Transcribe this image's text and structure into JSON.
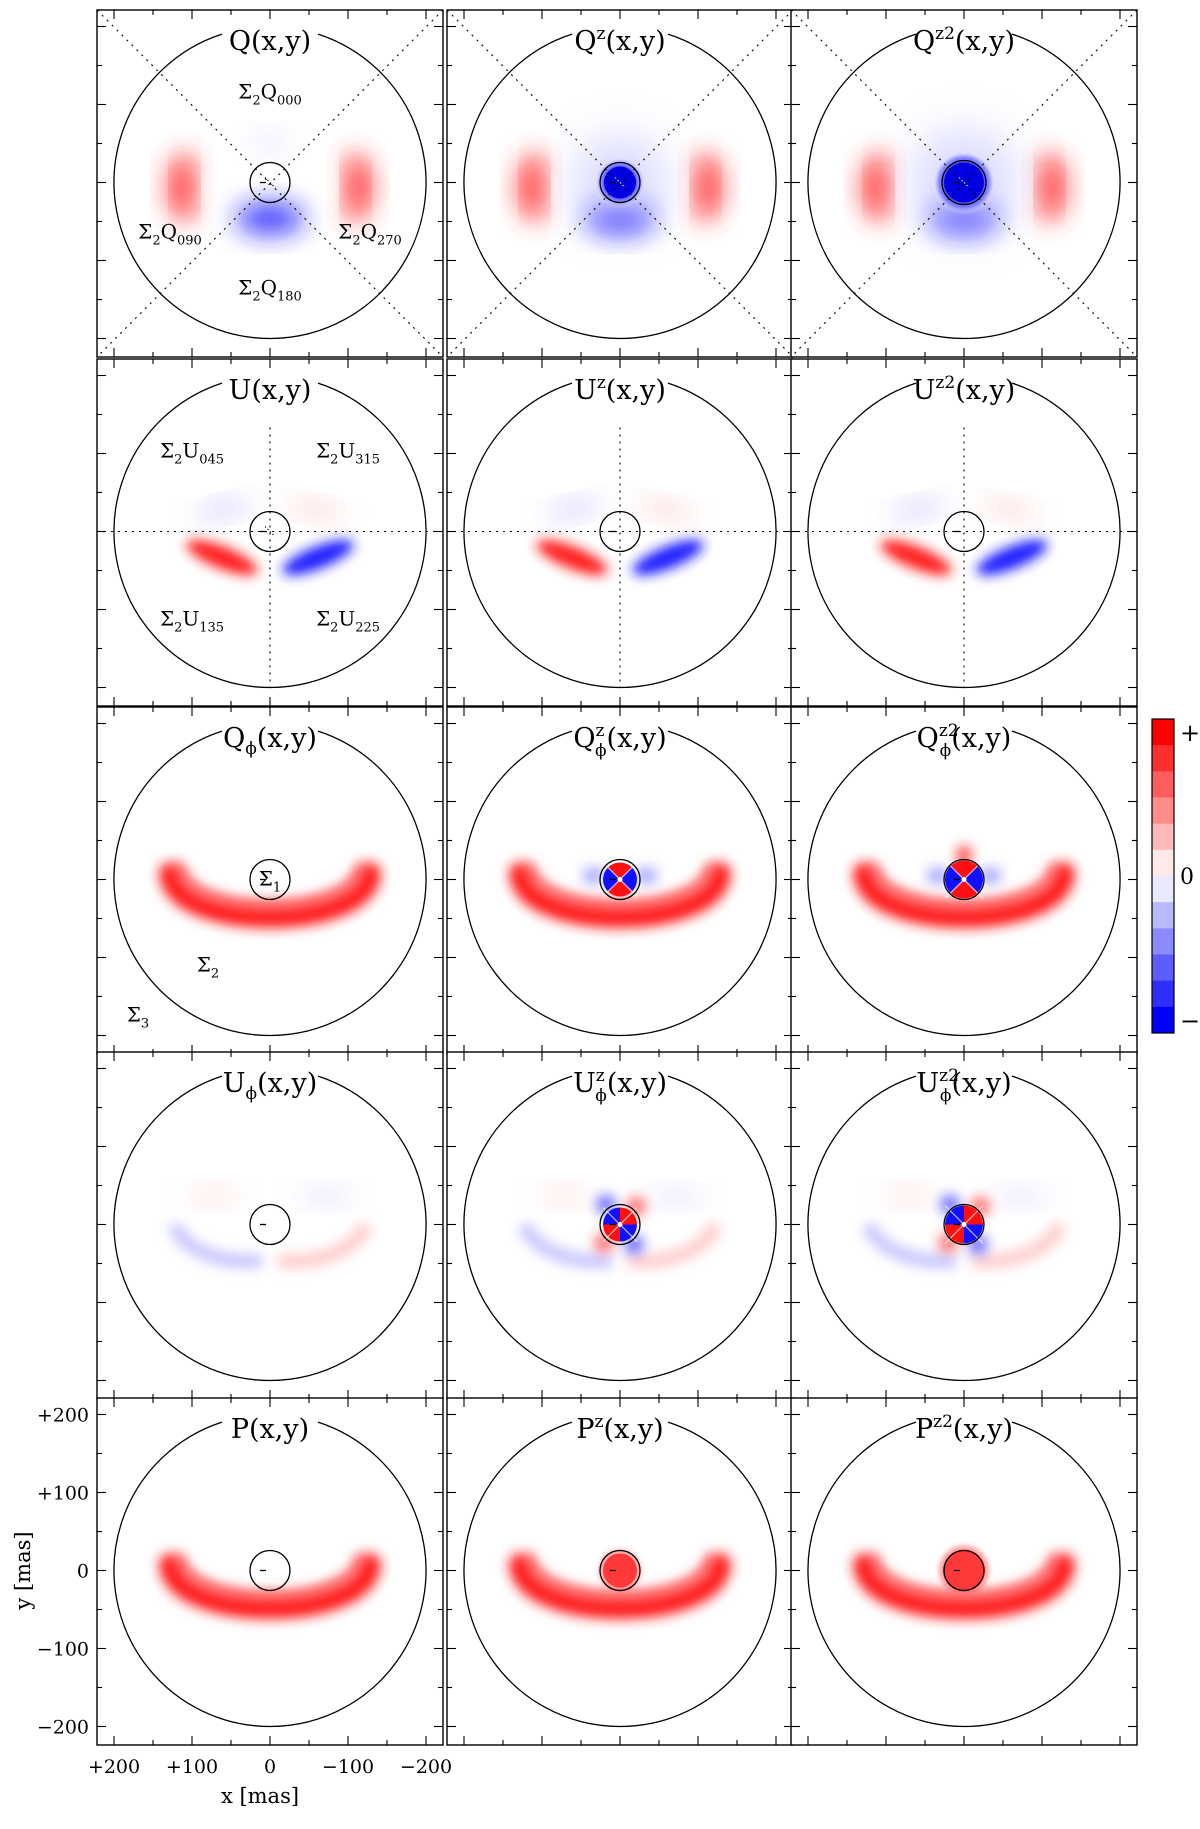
{
  "figure": {
    "axes": {
      "x_label": "x [mas]",
      "y_label": "y [mas]",
      "x_ticks": [
        "+200",
        "+100",
        "0",
        "−100",
        "−200"
      ],
      "y_ticks": [
        "+200",
        "+100",
        "0",
        "−100",
        "−200"
      ]
    },
    "colorbar": {
      "top_label": "+",
      "mid_label": "0",
      "bottom_label": "−",
      "pos_color": "#ff0000",
      "neg_color": "#0000ff"
    },
    "rows": [
      {
        "id": "q",
        "guide": "diag",
        "titles": [
          {
            "base": "Q",
            "sup": "",
            "sub": ""
          },
          {
            "base": "Q",
            "sup": "z",
            "sub": ""
          },
          {
            "base": "Q",
            "sup": "z2",
            "sub": ""
          }
        ],
        "annotations": [
          {
            "key": "n",
            "base": "Σ",
            "s1": "2",
            "mid": "Q",
            "s2": "000"
          },
          {
            "key": "w",
            "base": "Σ",
            "s1": "2",
            "mid": "Q",
            "s2": "090"
          },
          {
            "key": "e",
            "base": "Σ",
            "s1": "2",
            "mid": "Q",
            "s2": "270"
          },
          {
            "key": "s",
            "base": "Σ",
            "s1": "2",
            "mid": "Q",
            "s2": "180"
          }
        ]
      },
      {
        "id": "u",
        "guide": "cross",
        "titles": [
          {
            "base": "U",
            "sup": "",
            "sub": ""
          },
          {
            "base": "U",
            "sup": "z",
            "sub": ""
          },
          {
            "base": "U",
            "sup": "z2",
            "sub": ""
          }
        ],
        "annotations": [
          {
            "key": "nw",
            "base": "Σ",
            "s1": "2",
            "mid": "U",
            "s2": "045"
          },
          {
            "key": "ne",
            "base": "Σ",
            "s1": "2",
            "mid": "U",
            "s2": "315"
          },
          {
            "key": "sw",
            "base": "Σ",
            "s1": "2",
            "mid": "U",
            "s2": "135"
          },
          {
            "key": "se",
            "base": "Σ",
            "s1": "2",
            "mid": "U",
            "s2": "225"
          }
        ]
      },
      {
        "id": "qphi",
        "guide": "none",
        "titles": [
          {
            "base": "Q",
            "sup": "",
            "sub": "ϕ"
          },
          {
            "base": "Q",
            "sup": "z",
            "sub": "ϕ"
          },
          {
            "base": "Q",
            "sup": "z2",
            "sub": "ϕ"
          }
        ],
        "annotations": [
          {
            "key": "c",
            "base": "Σ",
            "s1": "1",
            "mid": "",
            "s2": ""
          },
          {
            "key": "r2",
            "base": "Σ",
            "s1": "2",
            "mid": "",
            "s2": ""
          },
          {
            "key": "r3",
            "base": "Σ",
            "s1": "3",
            "mid": "",
            "s2": ""
          }
        ]
      },
      {
        "id": "uphi",
        "guide": "none",
        "titles": [
          {
            "base": "U",
            "sup": "",
            "sub": "ϕ"
          },
          {
            "base": "U",
            "sup": "z",
            "sub": "ϕ"
          },
          {
            "base": "U",
            "sup": "z2",
            "sub": "ϕ"
          }
        ],
        "annotations": []
      },
      {
        "id": "p",
        "guide": "none",
        "titles": [
          {
            "base": "P",
            "sup": "",
            "sub": ""
          },
          {
            "base": "P",
            "sup": "z",
            "sub": ""
          },
          {
            "base": "P",
            "sup": "z2",
            "sub": ""
          }
        ],
        "annotations": []
      }
    ]
  }
}
